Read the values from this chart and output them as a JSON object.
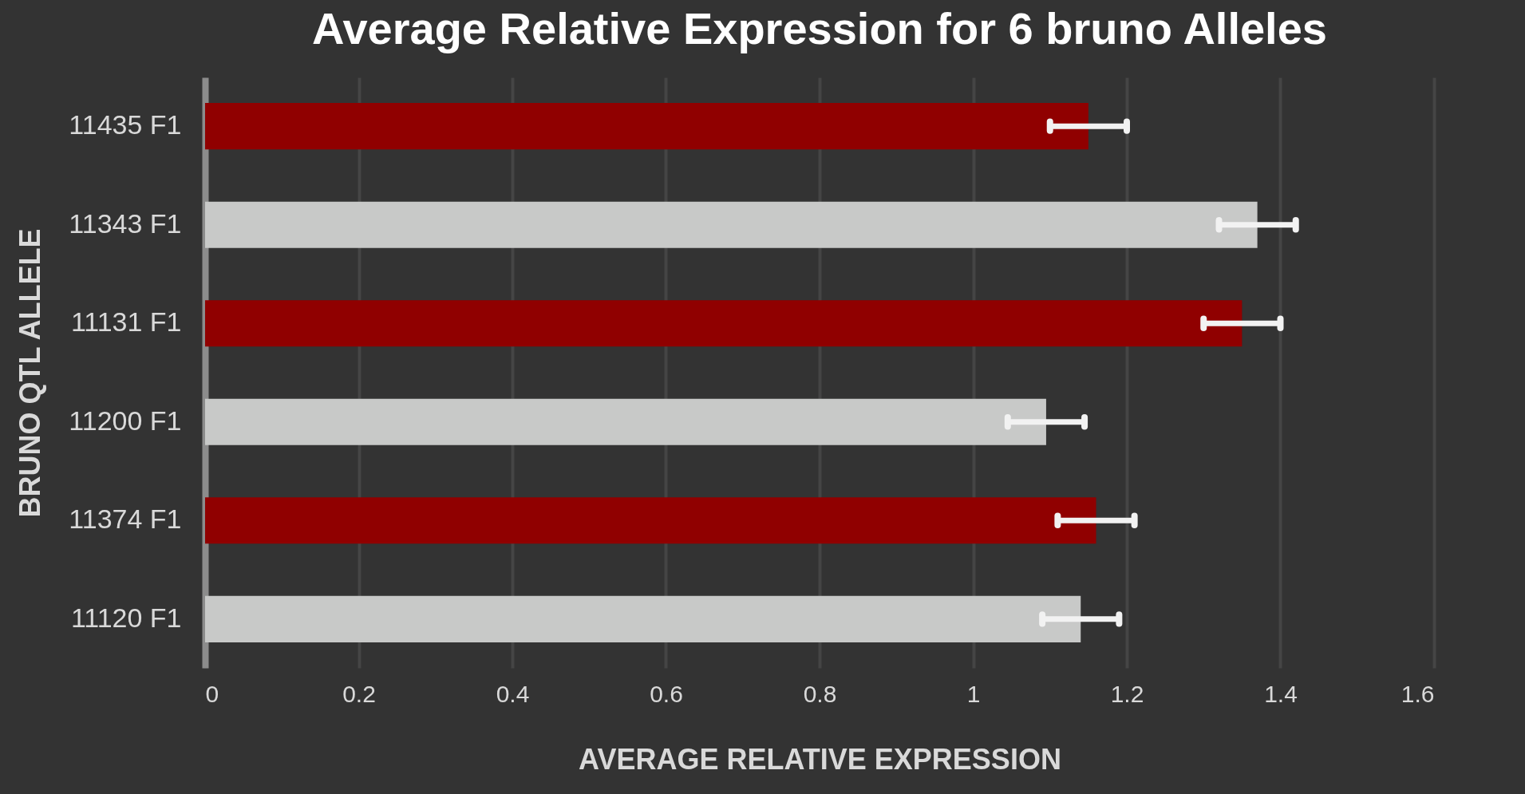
{
  "chart_data": {
    "type": "bar",
    "orientation": "horizontal",
    "title": "Average Relative Expression for 6 bruno Alleles",
    "xlabel": "AVERAGE RELATIVE EXPRESSION",
    "ylabel": "BRUNO QTL ALLELE",
    "categories": [
      "11435 F1",
      "11343 F1",
      "11131 F1",
      "11200 F1",
      "11374 F1",
      "11120 F1"
    ],
    "values": [
      1.15,
      1.37,
      1.35,
      1.095,
      1.16,
      1.14
    ],
    "errors": [
      0.05,
      0.05,
      0.05,
      0.05,
      0.05,
      0.05
    ],
    "colors": [
      "#900000",
      "#c8c9c8",
      "#900000",
      "#c8c9c8",
      "#900000",
      "#c8c9c8"
    ],
    "xlim": [
      0,
      1.6
    ],
    "xticks": [
      0,
      0.2,
      0.4,
      0.6,
      0.8,
      1,
      1.2,
      1.4,
      1.6
    ],
    "grid": "x"
  }
}
